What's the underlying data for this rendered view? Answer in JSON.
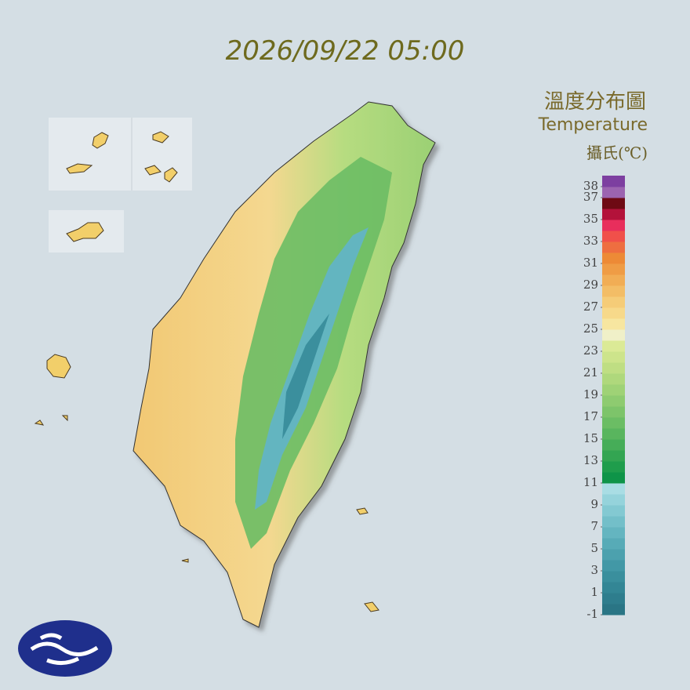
{
  "timestamp": "2026/09/22 05:00",
  "title": "溫度分布圖",
  "subtitle": "Temperature",
  "unit": "攝氏(℃)",
  "legend": {
    "lim": [
      -1,
      39
    ],
    "ticks": [
      38,
      37,
      35,
      33,
      31,
      29,
      27,
      25,
      23,
      21,
      19,
      17,
      15,
      13,
      11,
      9,
      7,
      5,
      3,
      1,
      -1
    ],
    "colors": [
      "#2a7585",
      "#2e7d8d",
      "#338695",
      "#3a8f9d",
      "#4298a6",
      "#4ca1ae",
      "#57abb7",
      "#64b5c0",
      "#73bfc9",
      "#83c9d2",
      "#95d3db",
      "#a9dde4",
      "#0e9448",
      "#1f9d4c",
      "#33a552",
      "#46ad58",
      "#59b55e",
      "#6bbd64",
      "#7dc46a",
      "#8ecb70",
      "#9fd276",
      "#afd87c",
      "#bfde83",
      "#cde48b",
      "#dbea96",
      "#f0f0c8",
      "#f7e6a0",
      "#f7d98a",
      "#f5cc78",
      "#f3bd66",
      "#f1ad55",
      "#ef9c45",
      "#ed8a36",
      "#ee6e40",
      "#f0504a",
      "#e82e5c",
      "#b3123a",
      "#6e0a14",
      "#9c64b0",
      "#7d3fa0"
    ]
  }
}
